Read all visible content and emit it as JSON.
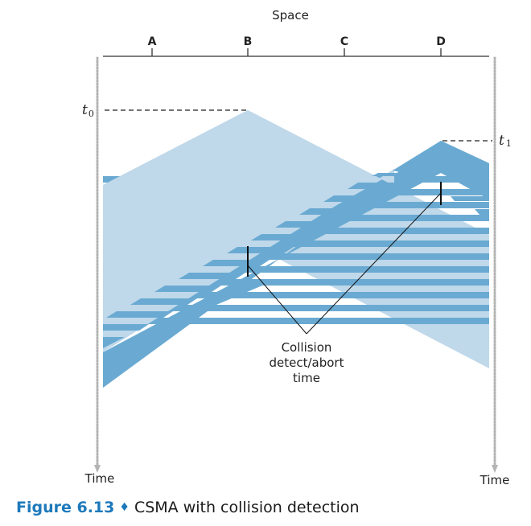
{
  "diagram": {
    "space_title": "Space",
    "nodes": [
      "A",
      "B",
      "C",
      "D"
    ],
    "t0": {
      "letter": "t",
      "sub": "0"
    },
    "t1": {
      "letter": "t",
      "sub": "1"
    },
    "time_axis_label_left": "Time",
    "time_axis_label_right": "Time",
    "annotation_lines": [
      "Collision",
      "detect/abort",
      "time"
    ]
  },
  "caption": {
    "number": "Figure 6.13",
    "separator": "♦",
    "text": "CSMA with collision detection"
  },
  "colors": {
    "light_signal": "#bfd8ea",
    "dark_signal": "#6aaad2",
    "caption_accent": "#1d79bb",
    "axis": "#333333",
    "dotted_axis": "#b4b4b4"
  }
}
